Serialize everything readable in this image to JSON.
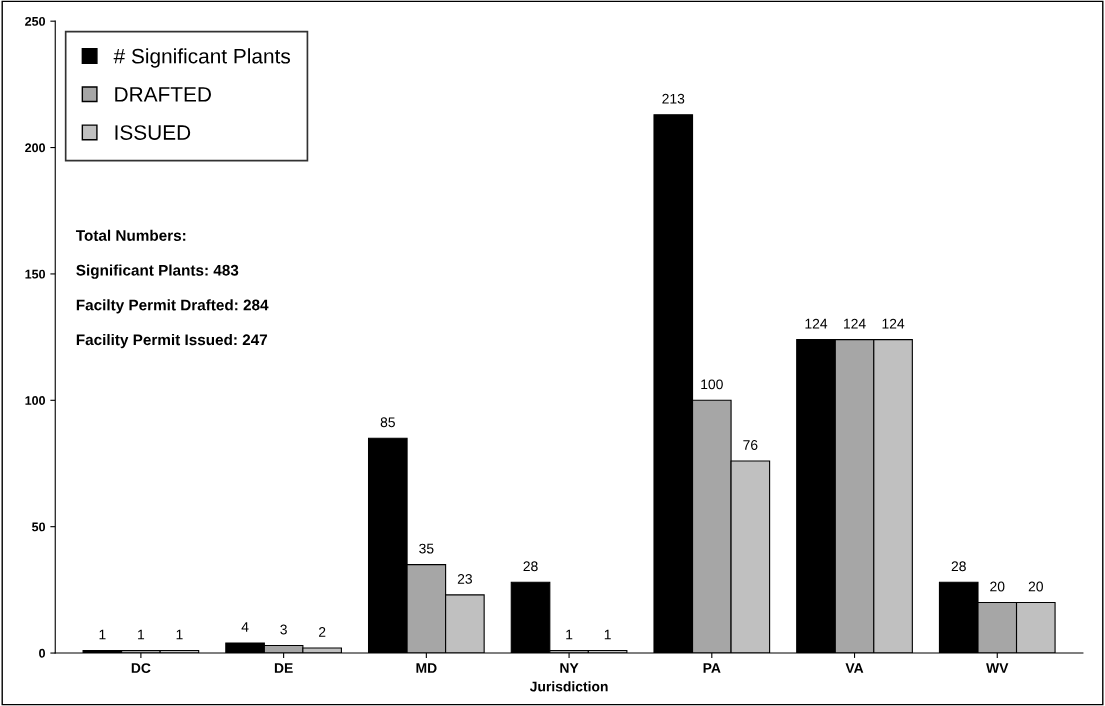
{
  "chart_data": {
    "type": "bar",
    "xlabel": "Jurisdiction",
    "categories": [
      "DC",
      "DE",
      "MD",
      "NY",
      "PA",
      "VA",
      "WV"
    ],
    "series": [
      {
        "name": "# Significant Plants",
        "color": "#000000",
        "values": [
          1,
          4,
          85,
          28,
          213,
          124,
          28
        ]
      },
      {
        "name": "DRAFTED",
        "color": "#a6a6a6",
        "values": [
          1,
          3,
          35,
          1,
          100,
          124,
          20
        ]
      },
      {
        "name": "ISSUED",
        "color": "#c0c0c0",
        "values": [
          1,
          2,
          23,
          1,
          76,
          124,
          20
        ]
      }
    ],
    "ylim": [
      0,
      250
    ],
    "yticks": [
      0,
      50,
      100,
      150,
      200,
      250
    ],
    "data_labels": true,
    "grid": false,
    "legend": "top left",
    "annotations": [
      "Total Numbers:",
      "Significant Plants: 483",
      "Facilty Permit Drafted: 284",
      "Facility Permit Issued: 247"
    ]
  }
}
